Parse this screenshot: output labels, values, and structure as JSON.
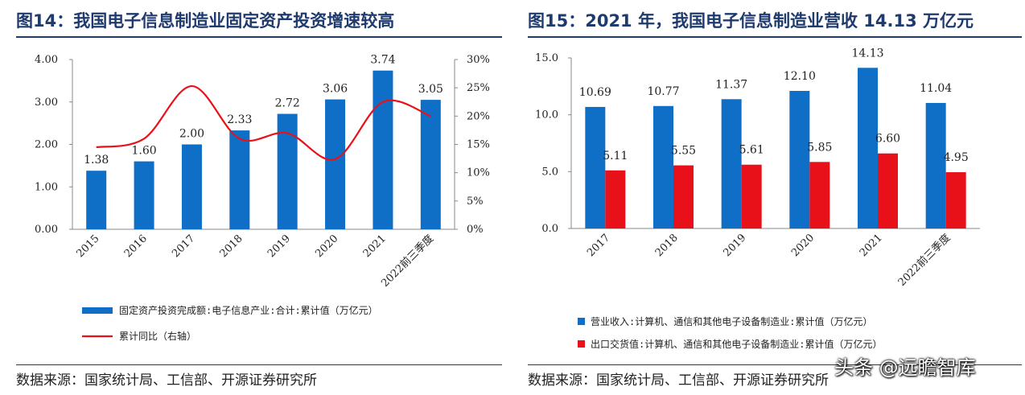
{
  "left_panel": {
    "title": "图14：我国电子信息制造业固定资产投资增速较高",
    "source": "数据来源：国家统计局、工信部、开源证券研究所"
  },
  "right_panel": {
    "title": "图15：2021 年，我国电子信息制造业营收 14.13 万亿元",
    "source": "数据来源：国家统计局、工信部、开源证券研究所"
  },
  "watermark": "头条 @远瞻智库",
  "colors": {
    "blue": "#0f6fc6",
    "red": "#e8111a",
    "title": "#1f3a6e"
  },
  "chart_data": [
    {
      "type": "bar+line",
      "categories": [
        "2015",
        "2016",
        "2017",
        "2018",
        "2019",
        "2020",
        "2021",
        "2022前三季度"
      ],
      "series": [
        {
          "name": "固定资产投资完成额:电子信息产业:合计:累计值（万亿元）",
          "kind": "bar",
          "axis": "left",
          "values": [
            1.38,
            1.6,
            2.0,
            2.33,
            2.72,
            3.06,
            3.74,
            3.05
          ]
        },
        {
          "name": "累计同比（右轴）",
          "kind": "line",
          "axis": "right",
          "values": [
            14.5,
            16.0,
            25.3,
            16.0,
            17.0,
            12.4,
            22.5,
            20.0
          ]
        }
      ],
      "ylim": [
        0,
        4
      ],
      "yticks": [
        "0.00",
        "1.00",
        "2.00",
        "3.00",
        "4.00"
      ],
      "y2lim": [
        0,
        30
      ],
      "y2ticks": [
        "0%",
        "5%",
        "10%",
        "15%",
        "20%",
        "25%",
        "30%"
      ],
      "data_labels": [
        "1.38",
        "1.60",
        "2.00",
        "2.33",
        "2.72",
        "3.06",
        "3.74",
        "3.05"
      ],
      "legend": "bottom"
    },
    {
      "type": "bar",
      "categories": [
        "2017",
        "2018",
        "2019",
        "2020",
        "2021",
        "2022前三季度"
      ],
      "series": [
        {
          "name": "营业收入:计算机、通信和其他电子设备制造业:累计值（万亿元）",
          "values": [
            10.69,
            10.77,
            11.37,
            12.1,
            14.13,
            11.04
          ]
        },
        {
          "name": "出口交货值:计算机、通信和其他电子设备制造业:累计值（万亿元）",
          "values": [
            5.11,
            5.55,
            5.61,
            5.85,
            6.6,
            4.95
          ]
        }
      ],
      "ylim": [
        0,
        15
      ],
      "yticks": [
        "0.0",
        "5.0",
        "10.0",
        "15.0"
      ],
      "data_labels": [
        [
          "10.69",
          "10.77",
          "11.37",
          "12.10",
          "14.13",
          "11.04"
        ],
        [
          "5.11",
          "5.55",
          "5.61",
          "5.85",
          "6.60",
          "4.95"
        ]
      ],
      "legend": "bottom"
    }
  ]
}
